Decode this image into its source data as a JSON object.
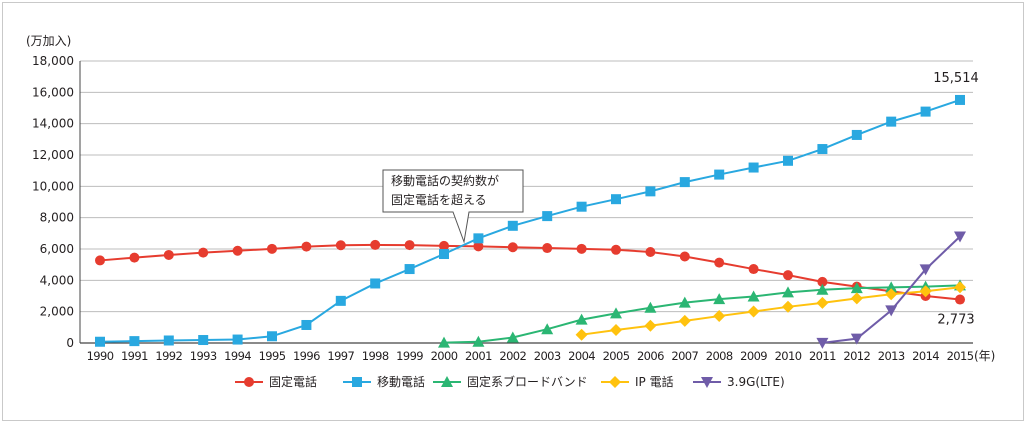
{
  "chart_data": {
    "type": "line",
    "ylabel": "(万加入)",
    "xunit": "(年)",
    "ylim": [
      0,
      18000
    ],
    "yticks": [
      0,
      2000,
      4000,
      6000,
      8000,
      10000,
      12000,
      14000,
      16000,
      18000
    ],
    "ytick_labels": [
      "0",
      "2,000",
      "4,000",
      "6,000",
      "8,000",
      "10,000",
      "12,000",
      "14,000",
      "16,000",
      "18,000"
    ],
    "x": [
      "1990",
      "1991",
      "1992",
      "1993",
      "1994",
      "1995",
      "1996",
      "1997",
      "1998",
      "1999",
      "2000",
      "2001",
      "2002",
      "2003",
      "2004",
      "2005",
      "2006",
      "2007",
      "2008",
      "2009",
      "2010",
      "2011",
      "2012",
      "2013",
      "2014",
      "2015"
    ],
    "grid": true,
    "legend_position": "bottom",
    "series": [
      {
        "name": "固定電話",
        "color": "#e63c2f",
        "marker": "circle",
        "values": [
          5270,
          5450,
          5620,
          5770,
          5890,
          6010,
          6150,
          6240,
          6260,
          6250,
          6200,
          6170,
          6110,
          6060,
          6010,
          5950,
          5810,
          5520,
          5130,
          4720,
          4330,
          3900,
          3600,
          3300,
          3000,
          2773
        ]
      },
      {
        "name": "移動電話",
        "color": "#29a8e0",
        "marker": "square",
        "values": [
          80,
          120,
          160,
          190,
          220,
          430,
          1150,
          2690,
          3800,
          4720,
          5680,
          6680,
          7480,
          8100,
          8700,
          9180,
          9680,
          10270,
          10750,
          11200,
          11630,
          12380,
          13280,
          14130,
          14770,
          15514
        ]
      },
      {
        "name": "固定系ブロードバンド",
        "color": "#2bb673",
        "marker": "triangle",
        "values": [
          null,
          null,
          null,
          null,
          null,
          null,
          null,
          null,
          null,
          null,
          20,
          80,
          350,
          880,
          1490,
          1890,
          2250,
          2580,
          2800,
          2970,
          3230,
          3400,
          3500,
          3550,
          3600,
          3680
        ]
      },
      {
        "name": "IP 電話",
        "color": "#ffc20e",
        "marker": "diamond",
        "values": [
          null,
          null,
          null,
          null,
          null,
          null,
          null,
          null,
          null,
          null,
          null,
          null,
          null,
          null,
          530,
          830,
          1100,
          1410,
          1720,
          2010,
          2310,
          2560,
          2850,
          3110,
          3300,
          3560
        ]
      },
      {
        "name": "3.9G(LTE)",
        "color": "#6f5ca8",
        "marker": "triangle-down",
        "values": [
          null,
          null,
          null,
          null,
          null,
          null,
          null,
          null,
          null,
          null,
          null,
          null,
          null,
          null,
          null,
          null,
          null,
          null,
          null,
          null,
          null,
          10,
          280,
          2080,
          4700,
          6800
        ]
      }
    ],
    "data_labels": [
      {
        "text": "15,514",
        "series": "移動電話",
        "x": "2015"
      },
      {
        "text": "2,773",
        "series": "固定電話",
        "x": "2015"
      }
    ],
    "annotation": {
      "lines": [
        "移動電話の契約数が",
        "固定電話を超える"
      ],
      "points_to_x": "2000"
    }
  }
}
